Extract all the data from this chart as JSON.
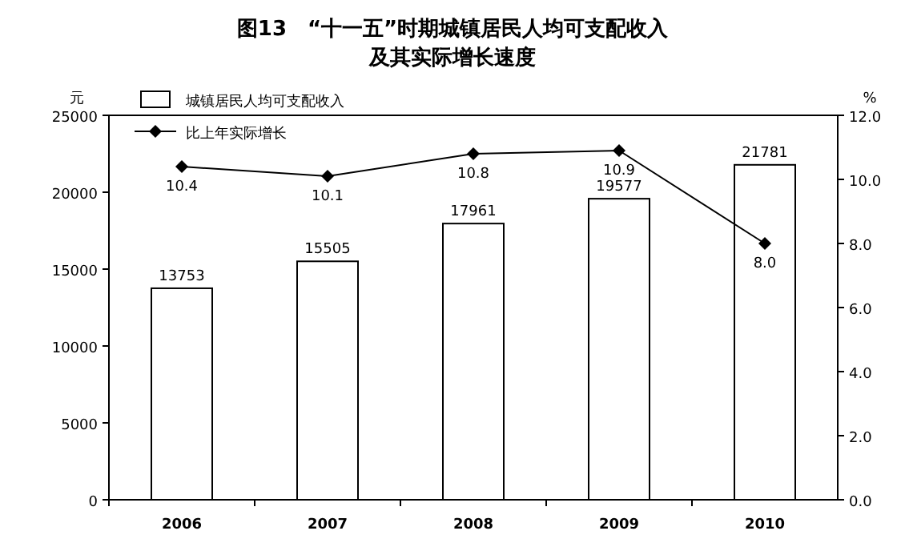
{
  "chart_data": {
    "type": "bar",
    "title": "图13　“十一五”时期城镇居民人均可支配收入",
    "subtitle": "及其实际增长速度",
    "ylabel": "元",
    "y2label": "%",
    "categories": [
      "2006",
      "2007",
      "2008",
      "2009",
      "2010"
    ],
    "series": [
      {
        "name": "城镇居民人均可支配收入",
        "color": "#ffffff",
        "values": [
          13753,
          15505,
          17961,
          19577,
          21781
        ]
      },
      {
        "name": "比上年实际增长",
        "type": "line",
        "axis": "y2",
        "color": "#000000",
        "marker": "diamond",
        "values": [
          10.4,
          10.1,
          10.8,
          10.9,
          8.0
        ],
        "value_labels": [
          "10.4",
          "10.1",
          "10.8",
          "10.9",
          "8.0"
        ]
      }
    ],
    "ylim": [
      0,
      25000
    ],
    "yticks": [
      0,
      5000,
      10000,
      15000,
      20000,
      25000
    ],
    "y2lim": [
      0,
      12
    ],
    "y2ticks": [
      {
        "value": 0,
        "label": "0.0"
      },
      {
        "value": 2,
        "label": "2.0"
      },
      {
        "value": 4,
        "label": "4.0"
      },
      {
        "value": 6,
        "label": "6.0"
      },
      {
        "value": 8,
        "label": "8.0"
      },
      {
        "value": 10,
        "label": "10.0"
      },
      {
        "value": 12,
        "label": "12.0"
      }
    ],
    "data_labels": true,
    "legend": "top left",
    "grid": false
  }
}
